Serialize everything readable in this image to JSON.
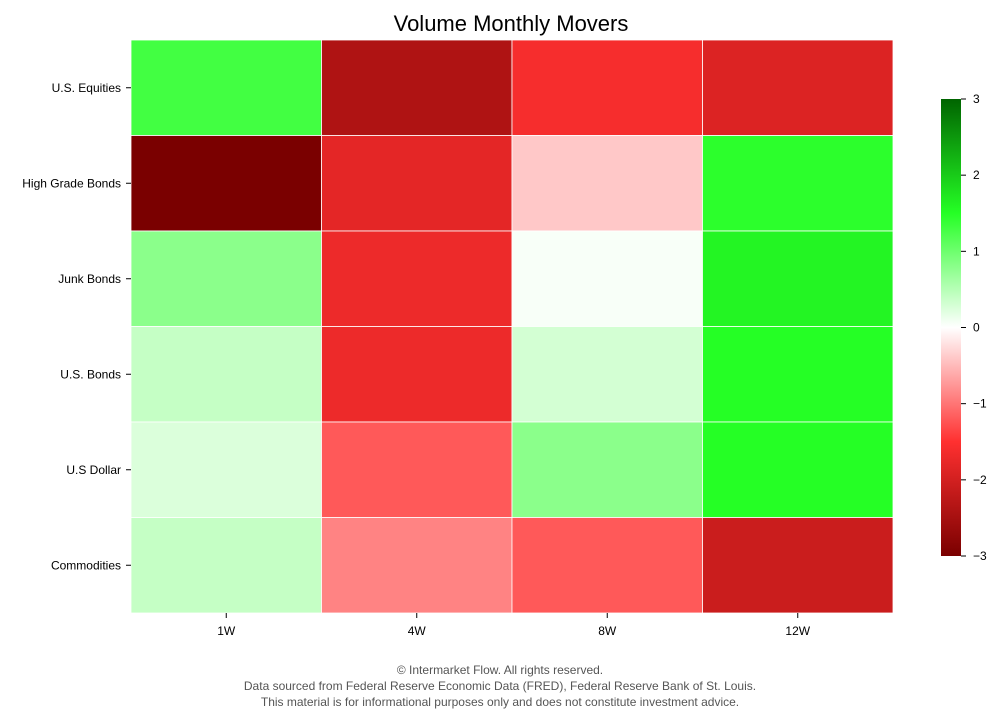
{
  "chart_data": {
    "type": "heatmap",
    "title": "Volume Monthly Movers",
    "xlabel": "",
    "ylabel": "",
    "x_categories": [
      "1W",
      "4W",
      "8W",
      "12W"
    ],
    "y_categories": [
      "U.S. Equities",
      "High Grade Bonds",
      "Junk Bonds",
      "U.S. Bonds",
      "U.S Dollar",
      "Commodities"
    ],
    "values": [
      [
        1.3,
        -2.4,
        -1.6,
        -1.9
      ],
      [
        -3.0,
        -1.8,
        -0.4,
        1.45
      ],
      [
        0.8,
        -1.7,
        0.05,
        1.6
      ],
      [
        0.4,
        -1.7,
        0.3,
        1.5
      ],
      [
        0.25,
        -1.2,
        0.8,
        1.5
      ],
      [
        0.4,
        -0.9,
        -1.2,
        -2.1
      ]
    ],
    "colorbar": {
      "min": -3,
      "max": 3,
      "ticks": [
        "−3",
        "−2",
        "−1",
        "0",
        "1",
        "2",
        "3"
      ],
      "colors": [
        "#7a0000",
        "#ff3030",
        "#ffffff",
        "#25ff25",
        "#006400"
      ]
    },
    "grid": false,
    "legend": "colorbar-right"
  },
  "footer": {
    "line1": "© Intermarket Flow. All rights reserved.",
    "line2": "Data sourced from Federal Reserve Economic Data (FRED), Federal Reserve Bank of St. Louis.",
    "line3": "This material is for informational purposes only and does not constitute investment advice."
  }
}
